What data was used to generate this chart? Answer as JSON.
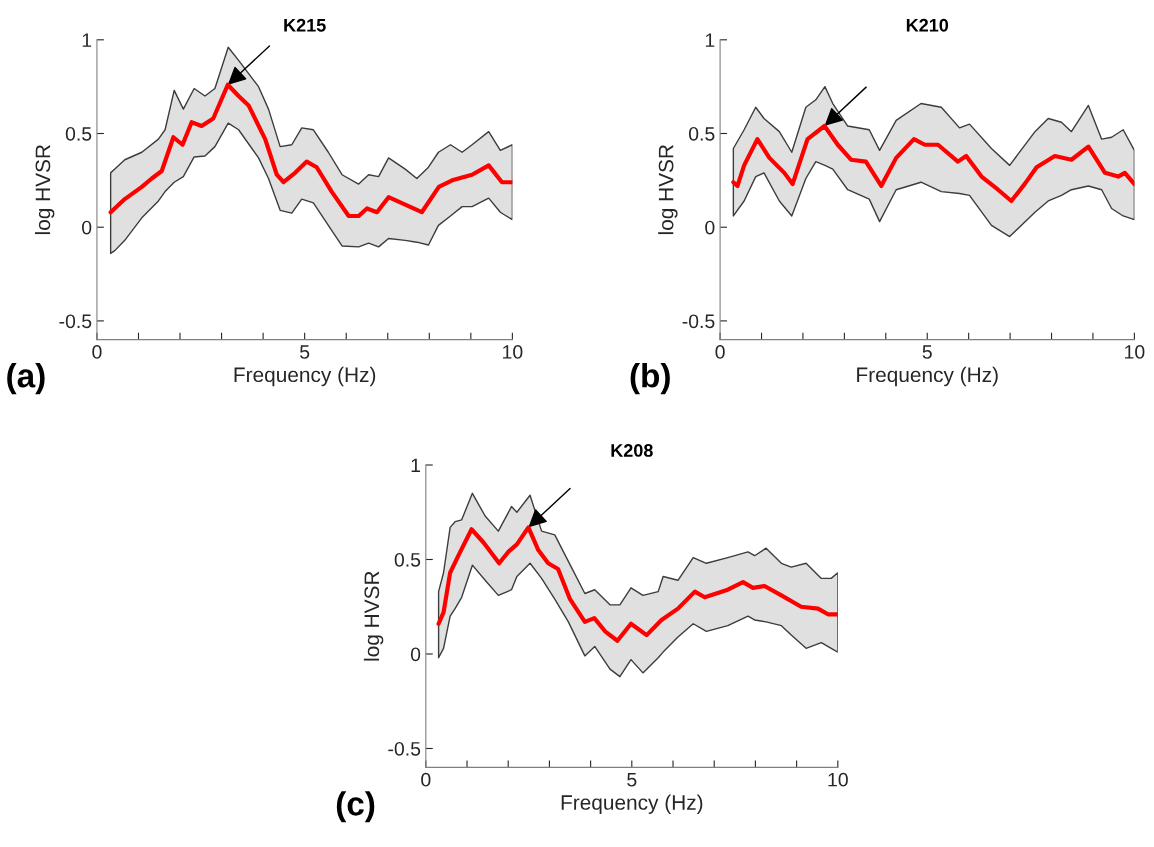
{
  "chart_data": [
    {
      "type": "line",
      "title": "K215",
      "xlabel": "Frequency (Hz)",
      "ylabel": "log HVSR",
      "annotations": [
        "(a)"
      ],
      "xlim": [
        0,
        10
      ],
      "ylim": [
        -0.6,
        1
      ],
      "xticks": [
        0,
        {
          "value": 1,
          "label": null
        },
        {
          "value": 2,
          "label": null
        },
        {
          "value": 3,
          "label": null
        },
        {
          "value": 4,
          "label": null
        },
        5,
        {
          "value": 6,
          "label": null
        },
        {
          "value": 7,
          "label": null
        },
        {
          "value": 8,
          "label": null
        },
        {
          "value": 9,
          "label": null
        },
        10
      ],
      "yticks": [
        -0.5,
        0,
        0.5,
        1
      ],
      "grid": false,
      "series": [
        {
          "type": "area",
          "color": "#e0e0e0",
          "values": [
            null,
            null,
            null,
            null,
            null,
            null,
            null,
            null,
            null,
            null,
            null,
            null,
            null,
            null,
            null,
            null,
            null,
            null,
            null,
            null,
            null,
            null,
            null,
            null,
            null,
            null,
            null,
            null,
            null,
            null,
            null,
            null,
            null,
            null,
            null
          ],
          "x": [
            0.33,
            0.43,
            0.67,
            1.08,
            1.48,
            1.64,
            1.86,
            2.08,
            2.34,
            2.6,
            2.84,
            3.16,
            3.41,
            3.89,
            4.13,
            4.41,
            4.69,
            4.93,
            5.21,
            5.57,
            5.9,
            6.3,
            6.54,
            6.78,
            7.02,
            7.42,
            7.7,
            7.98,
            8.22,
            8.51,
            8.79,
            9.03,
            9.43,
            9.71,
            10.0
          ],
          "upper": [
            0.29,
            0.31,
            0.36,
            0.4,
            0.47,
            0.52,
            0.73,
            0.63,
            0.74,
            0.7,
            0.74,
            0.96,
            0.89,
            0.75,
            0.63,
            0.43,
            0.44,
            0.53,
            0.52,
            0.4,
            0.28,
            0.23,
            0.28,
            0.27,
            0.37,
            0.31,
            0.26,
            0.32,
            0.4,
            0.44,
            0.4,
            0.44,
            0.51,
            0.41,
            0.44
          ],
          "lower": [
            -0.14,
            -0.125,
            -0.07,
            0.05,
            0.14,
            0.19,
            0.24,
            0.27,
            0.375,
            0.38,
            0.43,
            0.555,
            0.52,
            0.37,
            0.26,
            0.09,
            0.075,
            0.15,
            0.13,
            0.01,
            -0.1,
            -0.105,
            -0.085,
            -0.105,
            -0.06,
            -0.07,
            -0.08,
            -0.095,
            0.01,
            0.06,
            0.11,
            0.11,
            0.155,
            0.08,
            0.04
          ]
        },
        {
          "color": "#ff0000",
          "x": [
            0.33,
            0.67,
            1.08,
            1.32,
            1.56,
            1.84,
            2.06,
            2.28,
            2.52,
            2.8,
            3.15,
            3.41,
            3.65,
            4.05,
            4.33,
            4.49,
            4.77,
            5.05,
            5.29,
            5.65,
            6.06,
            6.3,
            6.5,
            6.74,
            7.02,
            7.42,
            7.82,
            8.23,
            8.55,
            9.03,
            9.43,
            9.75,
            10.0
          ],
          "values": [
            0.08,
            0.15,
            0.215,
            0.26,
            0.3,
            0.48,
            0.44,
            0.56,
            0.54,
            0.58,
            0.76,
            0.7,
            0.65,
            0.47,
            0.28,
            0.24,
            0.29,
            0.35,
            0.32,
            0.19,
            0.06,
            0.06,
            0.1,
            0.08,
            0.16,
            0.12,
            0.08,
            0.215,
            0.25,
            0.28,
            0.33,
            0.24,
            0.24
          ]
        }
      ]
    },
    {
      "type": "line",
      "title": "K210",
      "xlabel": "Frequency (Hz)",
      "ylabel": "log HVSR",
      "annotations": [
        "(b)"
      ],
      "xlim": [
        0,
        10
      ],
      "ylim": [
        -0.6,
        1
      ],
      "xticks": [
        0,
        {
          "value": 1,
          "label": null
        },
        {
          "value": 2,
          "label": null
        },
        {
          "value": 3,
          "label": null
        },
        {
          "value": 4,
          "label": null
        },
        5,
        {
          "value": 6,
          "label": null
        },
        {
          "value": 7,
          "label": null
        },
        {
          "value": 8,
          "label": null
        },
        {
          "value": 9,
          "label": null
        },
        10
      ],
      "yticks": [
        -0.5,
        0,
        0.5,
        1
      ],
      "grid": false,
      "series": [
        {
          "type": "area",
          "color": "#e0e0e0",
          "values": [
            null,
            null,
            null,
            null,
            null,
            null,
            null,
            null,
            null,
            null,
            null,
            null,
            null,
            null,
            null,
            null,
            null,
            null,
            null,
            null,
            null,
            null,
            null,
            null,
            null,
            null,
            null,
            null,
            null
          ],
          "x": [
            0.32,
            0.58,
            0.86,
            1.06,
            1.43,
            1.73,
            2.07,
            2.31,
            2.53,
            2.72,
            3.08,
            3.6,
            3.85,
            4.25,
            4.85,
            5.34,
            5.78,
            6.02,
            6.55,
            6.99,
            7.6,
            7.92,
            8.24,
            8.48,
            8.89,
            9.21,
            9.45,
            9.73,
            10.0
          ],
          "upper": [
            0.42,
            0.52,
            0.64,
            0.58,
            0.51,
            0.4,
            0.64,
            0.68,
            0.75,
            0.66,
            0.54,
            0.52,
            0.41,
            0.57,
            0.66,
            0.64,
            0.53,
            0.55,
            0.42,
            0.33,
            0.51,
            0.58,
            0.56,
            0.51,
            0.65,
            0.47,
            0.48,
            0.52,
            0.41
          ],
          "lower": [
            0.06,
            0.14,
            0.27,
            0.29,
            0.14,
            0.06,
            0.26,
            0.35,
            0.33,
            0.31,
            0.2,
            0.15,
            0.03,
            0.2,
            0.24,
            0.19,
            0.18,
            0.17,
            0.01,
            -0.05,
            0.08,
            0.14,
            0.17,
            0.2,
            0.22,
            0.2,
            0.1,
            0.06,
            0.04
          ]
        },
        {
          "color": "#ff0000",
          "x": [
            0.32,
            0.42,
            0.58,
            0.9,
            1.19,
            1.55,
            1.75,
            2.11,
            2.52,
            2.84,
            3.16,
            3.52,
            3.89,
            4.25,
            4.68,
            4.94,
            5.26,
            5.74,
            5.94,
            6.31,
            6.71,
            7.03,
            7.35,
            7.64,
            8.08,
            8.48,
            8.89,
            9.29,
            9.61,
            9.77,
            10.0
          ],
          "values": [
            0.24,
            0.22,
            0.33,
            0.47,
            0.37,
            0.29,
            0.23,
            0.47,
            0.54,
            0.44,
            0.36,
            0.35,
            0.22,
            0.37,
            0.47,
            0.44,
            0.44,
            0.35,
            0.38,
            0.27,
            0.2,
            0.14,
            0.23,
            0.32,
            0.38,
            0.36,
            0.43,
            0.29,
            0.27,
            0.29,
            0.23
          ]
        }
      ]
    },
    {
      "type": "line",
      "title": "K208",
      "xlabel": "Frequency (Hz)",
      "ylabel": "log HVSR",
      "annotations": [
        "(c)"
      ],
      "xlim": [
        0,
        10
      ],
      "ylim": [
        -0.6,
        1
      ],
      "xticks": [
        0,
        {
          "value": 1,
          "label": null
        },
        {
          "value": 2,
          "label": null
        },
        {
          "value": 3,
          "label": null
        },
        {
          "value": 4,
          "label": null
        },
        5,
        {
          "value": 6,
          "label": null
        },
        {
          "value": 7,
          "label": null
        },
        {
          "value": 8,
          "label": null
        },
        {
          "value": 9,
          "label": null
        },
        10
      ],
      "yticks": [
        -0.5,
        0,
        0.5,
        1
      ],
      "grid": false,
      "series": [
        {
          "type": "area",
          "color": "#e0e0e0",
          "values": [
            null,
            null,
            null,
            null,
            null,
            null,
            null,
            null,
            null,
            null,
            null,
            null,
            null,
            null,
            null,
            null,
            null,
            null,
            null,
            null,
            null,
            null,
            null,
            null,
            null,
            null,
            null,
            null,
            null,
            null,
            null,
            null,
            null,
            null,
            null
          ],
          "x": [
            0.31,
            0.43,
            0.59,
            0.71,
            0.87,
            1.13,
            1.44,
            1.76,
            2.08,
            2.21,
            2.53,
            2.81,
            3.13,
            3.46,
            3.86,
            4.1,
            4.47,
            4.71,
            4.98,
            5.27,
            5.64,
            5.76,
            6.12,
            6.49,
            6.81,
            7.33,
            7.82,
            7.98,
            8.26,
            8.63,
            8.87,
            9.23,
            9.6,
            9.84,
            10.0
          ],
          "upper": [
            0.33,
            0.43,
            0.67,
            0.7,
            0.71,
            0.85,
            0.73,
            0.65,
            0.78,
            0.75,
            0.84,
            0.65,
            0.63,
            0.49,
            0.32,
            0.34,
            0.26,
            0.26,
            0.35,
            0.31,
            0.33,
            0.41,
            0.39,
            0.51,
            0.48,
            0.51,
            0.54,
            0.52,
            0.56,
            0.48,
            0.46,
            0.48,
            0.4,
            0.4,
            0.43
          ],
          "lower": [
            -0.02,
            0.03,
            0.2,
            0.24,
            0.3,
            0.47,
            0.39,
            0.31,
            0.34,
            0.41,
            0.48,
            0.4,
            0.29,
            0.17,
            -0.01,
            0.04,
            -0.08,
            -0.12,
            -0.03,
            -0.1,
            -0.02,
            0.01,
            0.09,
            0.16,
            0.12,
            0.15,
            0.2,
            0.18,
            0.17,
            0.15,
            0.1,
            0.03,
            0.06,
            0.03,
            0.01
          ]
        },
        {
          "color": "#ff0000",
          "x": [
            0.31,
            0.43,
            0.59,
            0.79,
            1.11,
            1.4,
            1.78,
            2.0,
            2.21,
            2.49,
            2.73,
            2.97,
            3.21,
            3.5,
            3.86,
            4.09,
            4.35,
            4.65,
            4.98,
            5.36,
            5.72,
            6.12,
            6.53,
            6.77,
            7.33,
            7.7,
            7.94,
            8.22,
            8.63,
            9.11,
            9.52,
            9.76,
            10.0
          ],
          "values": [
            0.16,
            0.22,
            0.43,
            0.52,
            0.66,
            0.59,
            0.48,
            0.54,
            0.58,
            0.67,
            0.55,
            0.48,
            0.45,
            0.29,
            0.17,
            0.19,
            0.12,
            0.07,
            0.16,
            0.1,
            0.18,
            0.24,
            0.33,
            0.3,
            0.34,
            0.38,
            0.35,
            0.36,
            0.31,
            0.25,
            0.24,
            0.21,
            0.21
          ]
        }
      ]
    }
  ]
}
